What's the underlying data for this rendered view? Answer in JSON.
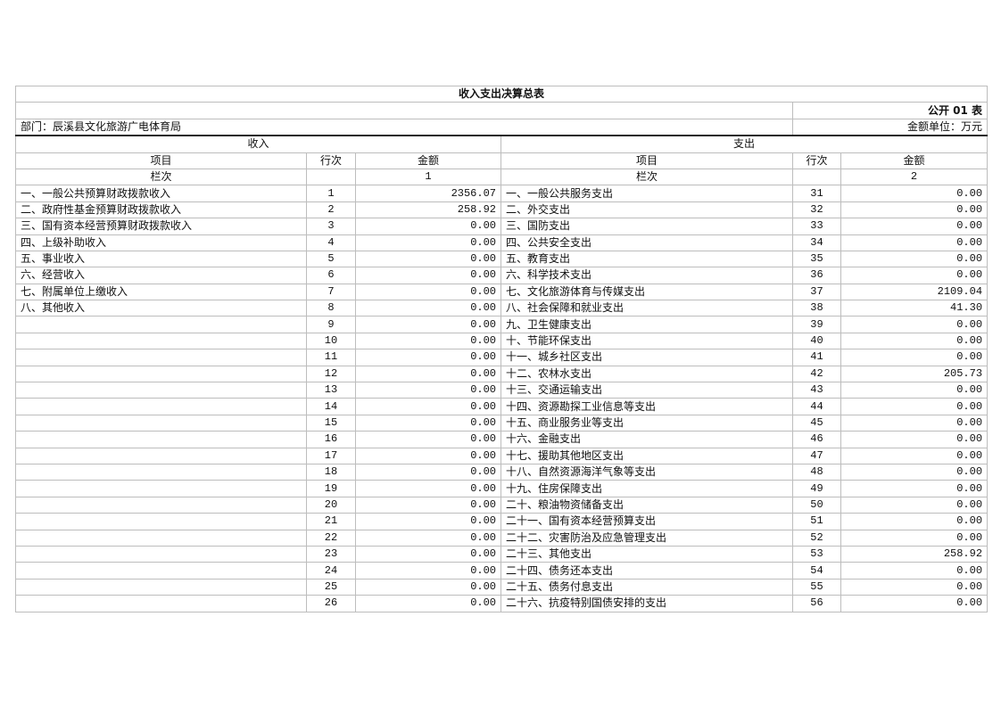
{
  "title": "收入支出决算总表",
  "form_code": "公开 01 表",
  "department": "部门：辰溪县文化旅游广电体育局",
  "unit": "金额单位：万元",
  "income_header": "收入",
  "expense_header": "支出",
  "col_item": "项目",
  "col_line": "行次",
  "col_amount": "金额",
  "col_label": "栏次",
  "income_col_no": "1",
  "expense_col_no": "2",
  "income_rows": [
    {
      "item": "一、一般公共预算财政拨款收入",
      "line": "1",
      "amount": "2356.07"
    },
    {
      "item": "二、政府性基金预算财政拨款收入",
      "line": "2",
      "amount": "258.92"
    },
    {
      "item": "三、国有资本经营预算财政拨款收入",
      "line": "3",
      "amount": "0.00"
    },
    {
      "item": "四、上级补助收入",
      "line": "4",
      "amount": "0.00"
    },
    {
      "item": "五、事业收入",
      "line": "5",
      "amount": "0.00"
    },
    {
      "item": "六、经营收入",
      "line": "6",
      "amount": "0.00"
    },
    {
      "item": "七、附属单位上缴收入",
      "line": "7",
      "amount": "0.00"
    },
    {
      "item": "八、其他收入",
      "line": "8",
      "amount": "0.00"
    },
    {
      "item": "",
      "line": "9",
      "amount": "0.00"
    },
    {
      "item": "",
      "line": "10",
      "amount": "0.00"
    },
    {
      "item": "",
      "line": "11",
      "amount": "0.00"
    },
    {
      "item": "",
      "line": "12",
      "amount": "0.00"
    },
    {
      "item": "",
      "line": "13",
      "amount": "0.00"
    },
    {
      "item": "",
      "line": "14",
      "amount": "0.00"
    },
    {
      "item": "",
      "line": "15",
      "amount": "0.00"
    },
    {
      "item": "",
      "line": "16",
      "amount": "0.00"
    },
    {
      "item": "",
      "line": "17",
      "amount": "0.00"
    },
    {
      "item": "",
      "line": "18",
      "amount": "0.00"
    },
    {
      "item": "",
      "line": "19",
      "amount": "0.00"
    },
    {
      "item": "",
      "line": "20",
      "amount": "0.00"
    },
    {
      "item": "",
      "line": "21",
      "amount": "0.00"
    },
    {
      "item": "",
      "line": "22",
      "amount": "0.00"
    },
    {
      "item": "",
      "line": "23",
      "amount": "0.00"
    },
    {
      "item": "",
      "line": "24",
      "amount": "0.00"
    },
    {
      "item": "",
      "line": "25",
      "amount": "0.00"
    },
    {
      "item": "",
      "line": "26",
      "amount": "0.00"
    }
  ],
  "expense_rows": [
    {
      "item": "一、一般公共服务支出",
      "line": "31",
      "amount": "0.00"
    },
    {
      "item": "二、外交支出",
      "line": "32",
      "amount": "0.00"
    },
    {
      "item": "三、国防支出",
      "line": "33",
      "amount": "0.00"
    },
    {
      "item": "四、公共安全支出",
      "line": "34",
      "amount": "0.00"
    },
    {
      "item": "五、教育支出",
      "line": "35",
      "amount": "0.00"
    },
    {
      "item": "六、科学技术支出",
      "line": "36",
      "amount": "0.00"
    },
    {
      "item": "七、文化旅游体育与传媒支出",
      "line": "37",
      "amount": "2109.04"
    },
    {
      "item": "八、社会保障和就业支出",
      "line": "38",
      "amount": "41.30"
    },
    {
      "item": "九、卫生健康支出",
      "line": "39",
      "amount": "0.00"
    },
    {
      "item": "十、节能环保支出",
      "line": "40",
      "amount": "0.00"
    },
    {
      "item": "十一、城乡社区支出",
      "line": "41",
      "amount": "0.00"
    },
    {
      "item": "十二、农林水支出",
      "line": "42",
      "amount": "205.73"
    },
    {
      "item": "十三、交通运输支出",
      "line": "43",
      "amount": "0.00"
    },
    {
      "item": "十四、资源勘探工业信息等支出",
      "line": "44",
      "amount": "0.00"
    },
    {
      "item": "十五、商业服务业等支出",
      "line": "45",
      "amount": "0.00"
    },
    {
      "item": "十六、金融支出",
      "line": "46",
      "amount": "0.00"
    },
    {
      "item": "十七、援助其他地区支出",
      "line": "47",
      "amount": "0.00"
    },
    {
      "item": "十八、自然资源海洋气象等支出",
      "line": "48",
      "amount": "0.00"
    },
    {
      "item": "十九、住房保障支出",
      "line": "49",
      "amount": "0.00"
    },
    {
      "item": "二十、粮油物资储备支出",
      "line": "50",
      "amount": "0.00"
    },
    {
      "item": "二十一、国有资本经营预算支出",
      "line": "51",
      "amount": "0.00"
    },
    {
      "item": "二十二、灾害防治及应急管理支出",
      "line": "52",
      "amount": "0.00"
    },
    {
      "item": "二十三、其他支出",
      "line": "53",
      "amount": "258.92"
    },
    {
      "item": "二十四、债务还本支出",
      "line": "54",
      "amount": "0.00"
    },
    {
      "item": "二十五、债务付息支出",
      "line": "55",
      "amount": "0.00"
    },
    {
      "item": "二十六、抗疫特别国债安排的支出",
      "line": "56",
      "amount": "0.00"
    }
  ]
}
